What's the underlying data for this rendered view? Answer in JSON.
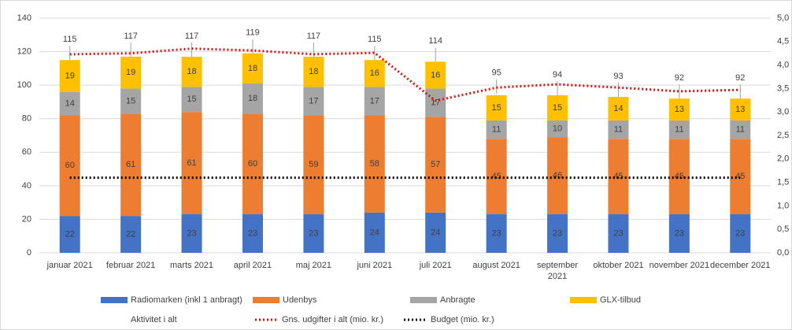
{
  "chart_data": {
    "type": "bar",
    "stacked": true,
    "grid": true,
    "categories": [
      "januar 2021",
      "februar 2021",
      "marts 2021",
      "april 2021",
      "maj 2021",
      "juni 2021",
      "juli 2021",
      "august 2021",
      "september 2021",
      "oktober 2021",
      "november 2021",
      "december 2021"
    ],
    "ylim": [
      0,
      140
    ],
    "yticks": [
      0,
      20,
      40,
      60,
      80,
      100,
      120,
      140
    ],
    "y2lim": [
      0,
      5
    ],
    "y2ticks": [
      {
        "value": 0,
        "label": "0,0"
      },
      {
        "value": 0.5,
        "label": "0,5"
      },
      {
        "value": 1,
        "label": "1,0"
      },
      {
        "value": 1.5,
        "label": "1,5"
      },
      {
        "value": 2,
        "label": "2,0"
      },
      {
        "value": 2.5,
        "label": "2,5"
      },
      {
        "value": 3,
        "label": "3,0"
      },
      {
        "value": 3.5,
        "label": "3,5"
      },
      {
        "value": 4,
        "label": "4,0"
      },
      {
        "value": 4.5,
        "label": "4,5"
      },
      {
        "value": 5,
        "label": "5,0"
      }
    ],
    "series": [
      {
        "name": "Radiomarken (inkl 1 anbragt)",
        "kind": "bar",
        "color": "#4472c4",
        "values": [
          22,
          22,
          23,
          23,
          23,
          24,
          24,
          23,
          23,
          23,
          23,
          23
        ]
      },
      {
        "name": "Udenbys",
        "kind": "bar",
        "color": "#ed7d31",
        "values": [
          60,
          61,
          61,
          60,
          59,
          58,
          57,
          45,
          46,
          45,
          45,
          45
        ]
      },
      {
        "name": "Anbragte",
        "kind": "bar",
        "color": "#a5a5a5",
        "values": [
          14,
          15,
          15,
          18,
          17,
          17,
          17,
          11,
          10,
          11,
          11,
          11
        ]
      },
      {
        "name": "GLX-tilbud",
        "kind": "bar",
        "color": "#ffc000",
        "values": [
          19,
          19,
          18,
          18,
          18,
          16,
          16,
          15,
          15,
          14,
          13,
          13
        ]
      },
      {
        "name": "Aktivitet i alt",
        "kind": "labels",
        "values": [
          115,
          117,
          117,
          119,
          117,
          115,
          114,
          95,
          94,
          93,
          92,
          92
        ]
      },
      {
        "name": "Gns. udgifter i alt  (mio. kr.)",
        "kind": "line",
        "axis": "y2",
        "color": "#e01010",
        "values": [
          4.23,
          4.25,
          4.35,
          4.31,
          4.23,
          4.26,
          3.24,
          3.52,
          3.59,
          3.52,
          3.44,
          3.47
        ]
      },
      {
        "name": "Budget (mio. kr.)",
        "kind": "line",
        "axis": "y2",
        "color": "#000000",
        "values": [
          1.6,
          1.6,
          1.6,
          1.6,
          1.6,
          1.6,
          1.6,
          1.6,
          1.6,
          1.6,
          1.6,
          1.6
        ]
      }
    ]
  }
}
